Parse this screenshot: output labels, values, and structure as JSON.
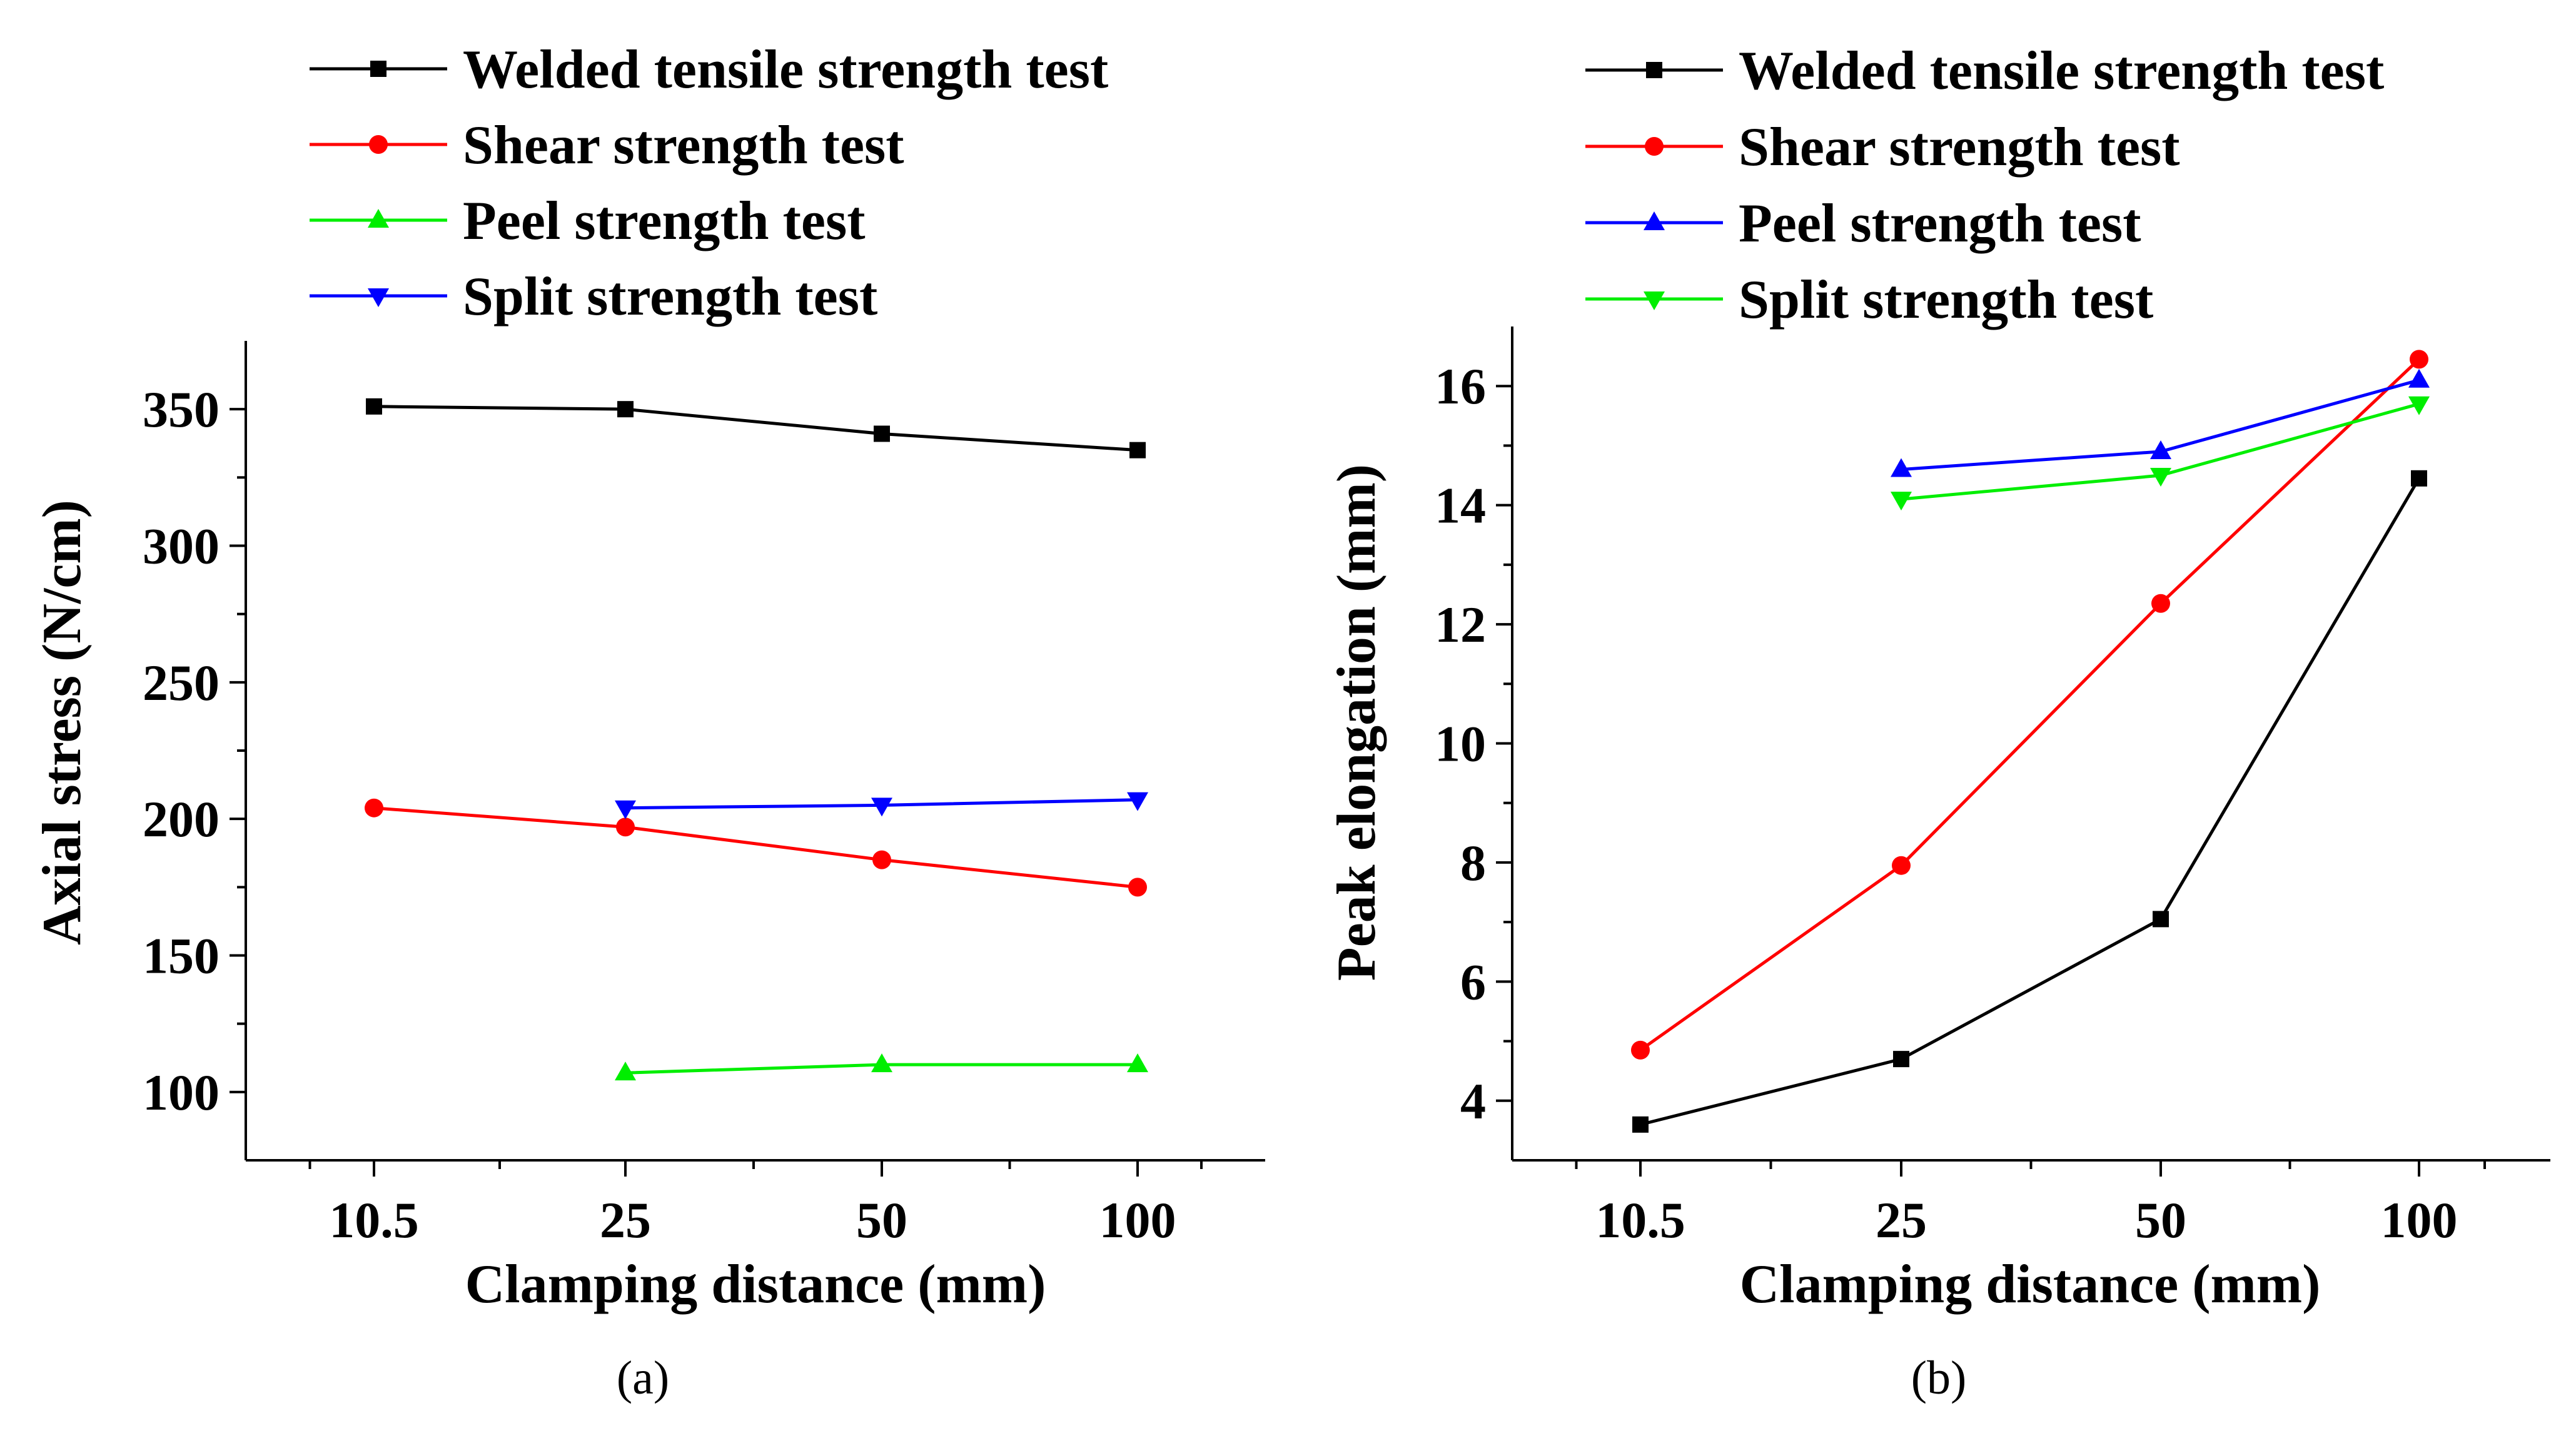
{
  "chart_data": [
    {
      "type": "line",
      "caption": "(a)",
      "xlabel": "Clamping distance (mm)",
      "ylabel": "Axial stress (N/cm)",
      "categories": [
        "10.5",
        "25",
        "50",
        "100"
      ],
      "ylim": [
        75,
        375
      ],
      "yticks": [
        100,
        150,
        200,
        250,
        300,
        350
      ],
      "ytick_labels": [
        "100",
        "150",
        "200",
        "250",
        "300",
        "350"
      ],
      "legend_position": "top",
      "grid": false,
      "series": [
        {
          "name": "Welded tensile strength test",
          "color": "#000000",
          "marker": "square",
          "values": [
            351,
            350,
            341,
            335
          ]
        },
        {
          "name": "Shear strength test",
          "color": "#ff0000",
          "marker": "circle",
          "values": [
            204,
            197,
            185,
            175
          ]
        },
        {
          "name": "Peel strength test",
          "color": "#00ee00",
          "marker": "triangle-up",
          "values": [
            null,
            107,
            110,
            110
          ]
        },
        {
          "name": "Split strength test",
          "color": "#0000ff",
          "marker": "triangle-down",
          "values": [
            null,
            204,
            205,
            207
          ]
        }
      ]
    },
    {
      "type": "line",
      "caption": "(b)",
      "xlabel": "Clamping distance (mm)",
      "ylabel": "Peak elongation (mm)",
      "categories": [
        "10.5",
        "25",
        "50",
        "100"
      ],
      "ylim": [
        3,
        17
      ],
      "yticks": [
        4,
        6,
        8,
        10,
        12,
        14,
        16
      ],
      "ytick_labels": [
        "4",
        "6",
        "8",
        "10",
        "12",
        "14",
        "16"
      ],
      "legend_position": "top",
      "grid": false,
      "series": [
        {
          "name": "Welded tensile strength test",
          "color": "#000000",
          "marker": "square",
          "values": [
            3.6,
            4.7,
            7.05,
            14.45
          ]
        },
        {
          "name": "Shear strength test",
          "color": "#ff0000",
          "marker": "circle",
          "values": [
            4.85,
            7.95,
            12.35,
            16.45
          ]
        },
        {
          "name": "Peel strength test",
          "color": "#0000ff",
          "marker": "triangle-up",
          "values": [
            null,
            14.6,
            14.9,
            16.1
          ]
        },
        {
          "name": "Split strength test",
          "color": "#00ee00",
          "marker": "triangle-down",
          "values": [
            null,
            14.1,
            14.5,
            15.7
          ]
        }
      ]
    }
  ]
}
